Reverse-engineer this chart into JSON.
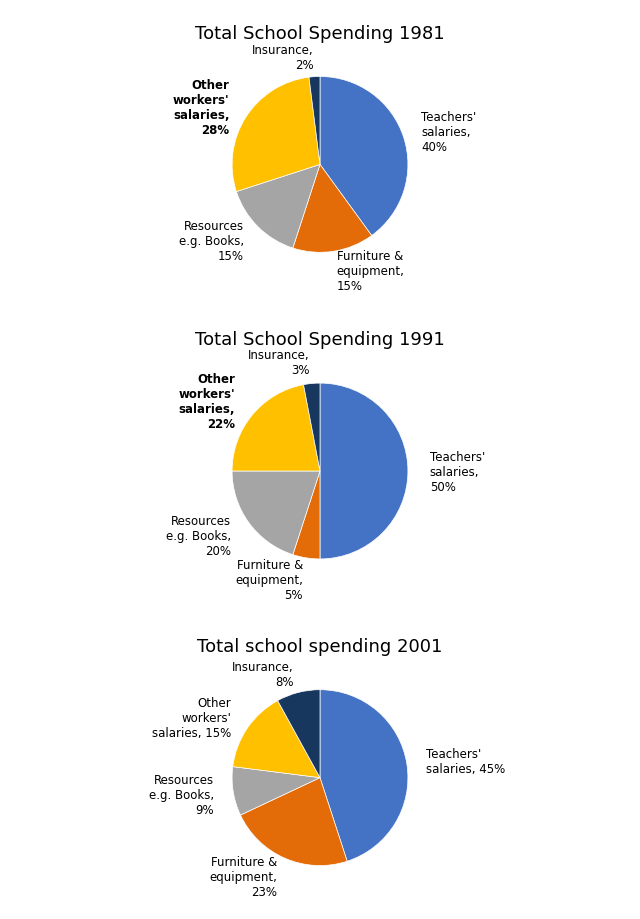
{
  "charts": [
    {
      "title": "Total School Spending 1981",
      "title_underline": true,
      "slices": [
        {
          "label": "Teachers'\nsalaries,\n40%",
          "value": 40,
          "color": "#4472C4"
        },
        {
          "label": "Furniture &\nequipment,\n15%",
          "value": 15,
          "color": "#E36C09"
        },
        {
          "label": "Resources\ne.g. Books,\n15%",
          "value": 15,
          "color": "#A5A5A5"
        },
        {
          "label": "Other\nworkers'\nsalaries,\n28%",
          "value": 28,
          "color": "#FFC000"
        },
        {
          "label": "Insurance,\n2%",
          "value": 2,
          "color": "#17375E"
        }
      ]
    },
    {
      "title": "Total School Spending 1991",
      "title_underline": true,
      "slices": [
        {
          "label": "Teachers'\nsalaries,\n50%",
          "value": 50,
          "color": "#4472C4"
        },
        {
          "label": "Furniture &\nequipment,\n5%",
          "value": 5,
          "color": "#E36C09"
        },
        {
          "label": "Resources\ne.g. Books,\n20%",
          "value": 20,
          "color": "#A5A5A5"
        },
        {
          "label": "Other\nworkers'\nsalaries,\n22%",
          "value": 22,
          "color": "#FFC000"
        },
        {
          "label": "Insurance,\n3%",
          "value": 3,
          "color": "#17375E"
        }
      ]
    },
    {
      "title": "Total school spending 2001",
      "title_underline": true,
      "slices": [
        {
          "label": "Teachers'\nsalaries, 45%",
          "value": 45,
          "color": "#4472C4"
        },
        {
          "label": "Furniture &\nequipment,\n23%",
          "value": 23,
          "color": "#E36C09"
        },
        {
          "label": "Resources\ne.g. Books,\n9%",
          "value": 9,
          "color": "#A5A5A5"
        },
        {
          "label": "Other\nworkers'\nsalaries, 15%",
          "value": 15,
          "color": "#FFC000"
        },
        {
          "label": "Insurance,\n8%",
          "value": 8,
          "color": "#17375E"
        }
      ]
    }
  ],
  "bg_color": "#FFFFFF",
  "label_fontsize": 8.5,
  "title_fontsize": 13
}
